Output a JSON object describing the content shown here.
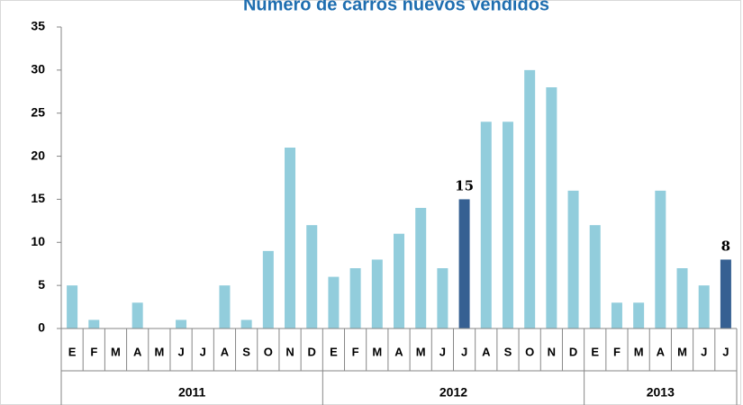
{
  "chart_data": {
    "type": "bar",
    "title": "Número de carros nuevos vendidos",
    "ylim": [
      0,
      35
    ],
    "yticks": [
      0,
      5,
      10,
      15,
      20,
      25,
      30,
      35
    ],
    "groups": [
      {
        "label": "2011",
        "categories": [
          "E",
          "F",
          "M",
          "A",
          "M",
          "J",
          "J",
          "A",
          "S",
          "O",
          "N",
          "D"
        ],
        "values": [
          5,
          1,
          0,
          3,
          0,
          1,
          0,
          5,
          1,
          9,
          21,
          12
        ],
        "colors": [
          "#92cddc",
          "#92cddc",
          "#92cddc",
          "#92cddc",
          "#92cddc",
          "#92cddc",
          "#92cddc",
          "#92cddc",
          "#92cddc",
          "#92cddc",
          "#92cddc",
          "#92cddc"
        ]
      },
      {
        "label": "2012",
        "categories": [
          "E",
          "F",
          "M",
          "A",
          "M",
          "J",
          "J",
          "A",
          "S",
          "O",
          "N",
          "D"
        ],
        "values": [
          6,
          7,
          8,
          11,
          14,
          7,
          15,
          24,
          24,
          30,
          28,
          16
        ],
        "colors": [
          "#92cddc",
          "#92cddc",
          "#92cddc",
          "#92cddc",
          "#92cddc",
          "#92cddc",
          "#366092",
          "#92cddc",
          "#92cddc",
          "#92cddc",
          "#92cddc",
          "#92cddc"
        ],
        "labeled": [
          6
        ]
      },
      {
        "label": "2013",
        "categories": [
          "E",
          "F",
          "M",
          "A",
          "M",
          "J",
          "J"
        ],
        "values": [
          12,
          3,
          3,
          16,
          7,
          5,
          8
        ],
        "colors": [
          "#92cddc",
          "#92cddc",
          "#92cddc",
          "#92cddc",
          "#92cddc",
          "#92cddc",
          "#366092"
        ],
        "labeled": [
          6
        ]
      }
    ]
  }
}
